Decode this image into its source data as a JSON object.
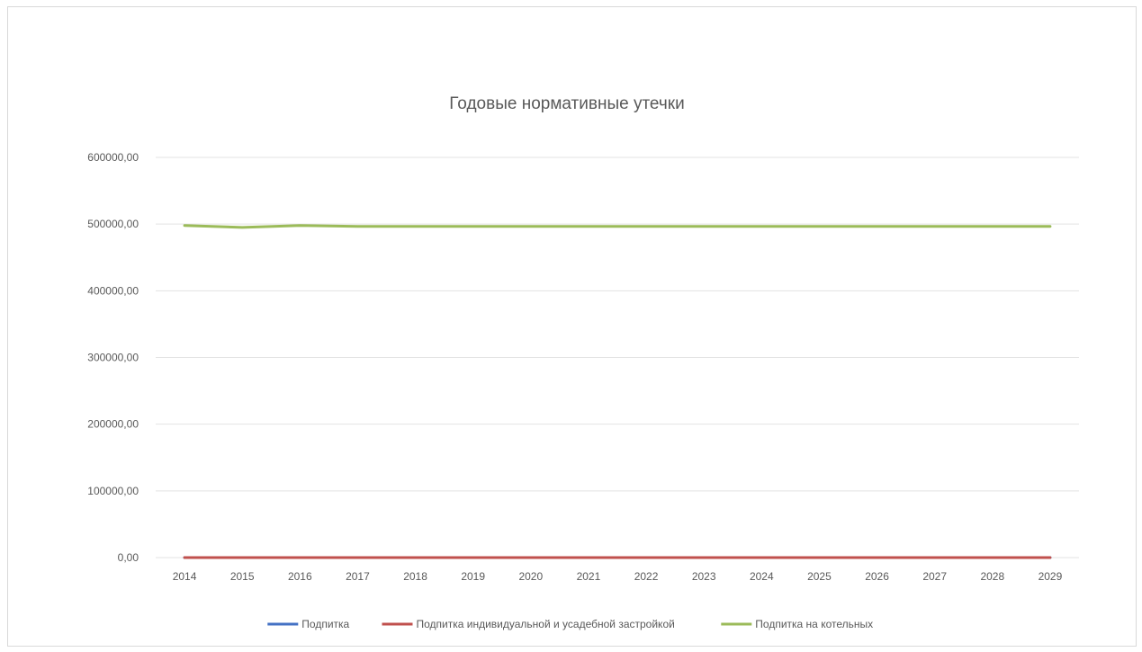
{
  "chart_data": {
    "type": "line",
    "title": "Годовые нормативные утечки",
    "xlabel": "",
    "ylabel": "",
    "categories": [
      "2014",
      "2015",
      "2016",
      "2017",
      "2018",
      "2019",
      "2020",
      "2021",
      "2022",
      "2023",
      "2024",
      "2025",
      "2026",
      "2027",
      "2028",
      "2029"
    ],
    "ylim": [
      0,
      600000
    ],
    "yticks": [
      "0,00",
      "100000,00",
      "200000,00",
      "300000,00",
      "400000,00",
      "500000,00",
      "600000,00"
    ],
    "grid": true,
    "legend_position": "bottom",
    "series": [
      {
        "name": "Подпитка",
        "color": "#4472c4",
        "values": [
          0,
          0,
          0,
          0,
          0,
          0,
          0,
          0,
          0,
          0,
          0,
          0,
          0,
          0,
          0,
          0
        ]
      },
      {
        "name": "Подпитка  индивидуальной и усадебной застройкой",
        "color": "#c0504d",
        "values": [
          0,
          0,
          0,
          0,
          0,
          0,
          0,
          0,
          0,
          0,
          0,
          0,
          0,
          0,
          0,
          0
        ]
      },
      {
        "name": "Подпитка на котельных",
        "color": "#9bbb59",
        "values": [
          498000,
          495000,
          498000,
          496500,
          496500,
          496500,
          496500,
          496500,
          496500,
          496500,
          496500,
          496500,
          496500,
          496500,
          496500,
          496500
        ]
      }
    ]
  }
}
